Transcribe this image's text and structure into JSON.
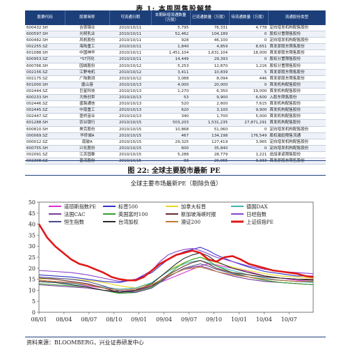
{
  "table_title": "表 1: 本周限售股解禁",
  "table": {
    "headers": [
      "股票代码",
      "股票简称",
      "可流通日期",
      "本期新增流通数量（万股）",
      "已流通数量（万股）",
      "待流通数量（万股）",
      "流通股份类型"
    ],
    "rows": [
      [
        "600432.SH",
        "吉恩镍业",
        "2010/10/11",
        "5,795",
        "76,331",
        "4,778",
        "定向增发机构配售股份"
      ],
      [
        "600597.SH",
        "光明乳业",
        "2010/10/11",
        "52,462",
        "104,189",
        "0",
        "股权分置限售股份"
      ],
      [
        "600482.SH",
        "风帆股份",
        "2010/10/11",
        "928",
        "46,100",
        "0",
        "定向增发机构配售股份"
      ],
      [
        "002255.SZ",
        "海陆重工",
        "2010/10/11",
        "1,840",
        "4,859",
        "8,651",
        "首发原股东限售股份"
      ],
      [
        "601088.SH",
        "中国神华",
        "2010/10/11",
        "1,451,104",
        "1,631,104",
        "18,000",
        "首发原股东限售股份"
      ],
      [
        "600953.SZ",
        "*ST河化",
        "2010/10/11",
        "14,449",
        "29,393",
        "0",
        "股权分置限售股份"
      ],
      [
        "600766.SH",
        "园城股份",
        "2010/10/12",
        "5,253",
        "12,870",
        "1,216",
        "股权分置限售股份"
      ],
      [
        "002156.SZ",
        "江野电机",
        "2010/10/12",
        "3,411",
        "10,839",
        "5",
        "首发原股东限售股份"
      ],
      [
        "002175.SZ",
        "广陆数测",
        "2010/10/12",
        "3,088",
        "8,094",
        "446",
        "首发原股东限售股份"
      ],
      [
        "601000.SH",
        "唐山港",
        "2010/10/13",
        "4,000",
        "20,000",
        "0",
        "首发机构配售股份"
      ],
      [
        "002444.SZ",
        "巨星科技",
        "2010/10/13",
        "1,270",
        "6,350",
        "19,000",
        "首发机构配售股份"
      ],
      [
        "600233.SH",
        "大杨创世",
        "2010/10/13",
        "53",
        "9,900",
        "6,600",
        "入股东限售股份"
      ],
      [
        "002446.SZ",
        "盛路通信",
        "2010/10/13",
        "520",
        "2,600",
        "7,615",
        "首发机构配售股份"
      ],
      [
        "002445.SZ",
        "中南重工",
        "2010/10/13",
        "620",
        "3,100",
        "9,900",
        "首发机构配售股份"
      ],
      [
        "002447.SZ",
        "壹桥苗业",
        "2010/10/13",
        "340",
        "1,700",
        "5,000",
        "首发机构配售股份"
      ],
      [
        "601288.SH",
        "农业银行",
        "2010/10/15",
        "503,203",
        "1,531,235",
        "27,871,291",
        "首发机构配售股份"
      ],
      [
        "600810.SH",
        "美克股份",
        "2010/10/15",
        "10,868",
        "51,060",
        "0",
        "定向增发机构配售股份"
      ],
      [
        "000069.SZ",
        "华侨城A",
        "2010/10/15",
        "467",
        "134,198",
        "176,549",
        "股权激励限售流通"
      ],
      [
        "000012.SZ",
        "南玻A",
        "2010/10/15",
        "29,325",
        "127,419",
        "3,965",
        "定向增发机构配售股份"
      ],
      [
        "600755.SH",
        "兴化股份",
        "2010/10/15",
        "600",
        "35,840",
        "0",
        "定向增发机构配售股份"
      ],
      [
        "002091.SZ",
        "江苏国泰",
        "2010/10/15",
        "5,288",
        "28,779",
        "1,221",
        "追加承诺限售股份"
      ],
      [
        "002308.SZ",
        "普洱股份",
        "2010/10/15",
        "93",
        "20,065",
        "3,333",
        "首发原股东限售股份"
      ]
    ]
  },
  "figure_title": "图 22: 全球主要股市最新 PE",
  "chart_data": {
    "type": "line",
    "title": "全球主要市场最新PE（剔除负值）",
    "x_ticks": [
      "08/01",
      "08/04",
      "08/07",
      "08/10",
      "09/01",
      "09/04",
      "09/07",
      "09/10",
      "10/01",
      "10/04",
      "10/07"
    ],
    "x_range": [
      0,
      34
    ],
    "ylim": [
      0,
      50
    ],
    "y_ticks": [
      0,
      5,
      10,
      15,
      20,
      25,
      30,
      35,
      40,
      45,
      50
    ],
    "legend_rows": [
      [
        "道琼斯指数PE",
        "标普500",
        "加拿大标普",
        "德国DAX"
      ],
      [
        "法国CAC",
        "英国富时100",
        "新加坡海峡时报",
        "日经指数"
      ],
      [
        "恒生指数",
        "台湾加权",
        "澳证200",
        "上证综指PE"
      ]
    ],
    "series": [
      {
        "name": "道琼斯指数PE",
        "color": "#d82fd6",
        "width": 1.1,
        "x": [
          0,
          2,
          4,
          6,
          8,
          10,
          12,
          14,
          15,
          16,
          17,
          18,
          19,
          20,
          21,
          22,
          24,
          26,
          28,
          30,
          32,
          34
        ],
        "values": [
          14.5,
          14,
          13.2,
          12,
          11,
          10,
          10.5,
          12,
          13.5,
          15,
          16.5,
          18,
          19.5,
          21,
          22,
          21.5,
          20,
          18.5,
          16.5,
          15.5,
          14.5,
          14
        ]
      },
      {
        "name": "标普500",
        "color": "#3030c8",
        "width": 1.1,
        "x": [
          0,
          2,
          4,
          6,
          8,
          10,
          12,
          14,
          15,
          16,
          17,
          18,
          19,
          20,
          21,
          22,
          24,
          26,
          28,
          30,
          32,
          34
        ],
        "values": [
          17,
          16.5,
          16,
          15,
          14,
          13.5,
          15,
          18,
          21,
          24,
          26,
          27.5,
          28.5,
          29.5,
          28,
          26,
          23,
          20.5,
          18.5,
          17.5,
          16.5,
          16.5
        ]
      },
      {
        "name": "加拿大标普",
        "color": "#e8d820",
        "width": 1.1,
        "x": [
          0,
          2,
          4,
          6,
          8,
          10,
          12,
          14,
          15,
          16,
          17,
          18,
          19,
          20,
          21,
          22,
          24,
          26,
          28,
          30,
          32,
          34
        ],
        "values": [
          15,
          15.5,
          15,
          14.5,
          13.5,
          12,
          11,
          13,
          16,
          19,
          21,
          22.5,
          24,
          25,
          24,
          22.5,
          20.5,
          19,
          17.5,
          16.5,
          16,
          15.5
        ]
      },
      {
        "name": "德国DAX",
        "color": "#40b0b0",
        "width": 1.1,
        "x": [
          0,
          2,
          4,
          6,
          8,
          10,
          12,
          14,
          15,
          16,
          17,
          18,
          19,
          20,
          21,
          22,
          24,
          26,
          28,
          30,
          32,
          34
        ],
        "values": [
          14,
          13.5,
          13,
          12.5,
          11.5,
          10.5,
          11,
          13.5,
          16,
          18.5,
          20.5,
          22,
          23,
          23.5,
          22.5,
          21,
          19,
          17,
          15.5,
          14.5,
          14,
          13.5
        ]
      },
      {
        "name": "法国CAC",
        "color": "#7a3a9a",
        "width": 1.1,
        "x": [
          0,
          2,
          4,
          6,
          8,
          10,
          12,
          14,
          15,
          16,
          17,
          18,
          19,
          20,
          21,
          22,
          24,
          26,
          28,
          30,
          32,
          34
        ],
        "values": [
          12.5,
          12,
          11.5,
          11,
          10,
          9.5,
          10,
          12,
          14,
          16,
          18,
          19.5,
          20.5,
          21,
          20,
          18.5,
          16.5,
          15,
          14,
          13.5,
          13,
          12.5
        ]
      },
      {
        "name": "英国富时100",
        "color": "#30a030",
        "width": 1.1,
        "x": [
          0,
          2,
          4,
          6,
          8,
          10,
          12,
          14,
          15,
          16,
          17,
          18,
          19,
          20,
          21,
          22,
          24,
          26,
          28,
          30,
          32,
          34
        ],
        "values": [
          13,
          12.5,
          12,
          11.5,
          10,
          8.5,
          9,
          11.5,
          14,
          17,
          20,
          22.5,
          24,
          25,
          23.5,
          21,
          18,
          16,
          14.5,
          13.5,
          13,
          12.5
        ]
      },
      {
        "name": "新加坡海峡时报",
        "color": "#6a2a2a",
        "width": 1.1,
        "x": [
          0,
          2,
          4,
          6,
          8,
          10,
          12,
          14,
          15,
          16,
          17,
          18,
          19,
          20,
          21,
          22,
          24,
          26,
          28,
          30,
          32,
          34
        ],
        "values": [
          15.5,
          15,
          14,
          13,
          11,
          9,
          9.5,
          12,
          14.5,
          17,
          19,
          21,
          22.5,
          23.5,
          22,
          20,
          18,
          17,
          16,
          15.5,
          15,
          15
        ]
      },
      {
        "name": "日经指数",
        "color": "#8a40d0",
        "width": 1.1,
        "x": [
          0,
          2,
          4,
          6,
          8,
          10,
          12,
          14,
          15,
          16,
          17,
          18,
          19,
          20,
          21,
          22,
          24,
          26,
          28,
          30,
          32,
          34
        ],
        "values": [
          19,
          18.5,
          18,
          17,
          15.5,
          14,
          15,
          19,
          23,
          26,
          27.5,
          28.5,
          29,
          28,
          26.5,
          25,
          23,
          21,
          19.5,
          18.5,
          18,
          17.5
        ]
      },
      {
        "name": "恒生指数",
        "color": "#4a4a8a",
        "width": 1.1,
        "x": [
          0,
          2,
          4,
          6,
          8,
          10,
          12,
          14,
          15,
          16,
          17,
          18,
          19,
          20,
          21,
          22,
          24,
          26,
          28,
          30,
          32,
          34
        ],
        "values": [
          16,
          15.5,
          15,
          14,
          12,
          9.5,
          9,
          11,
          13.5,
          16,
          18,
          20,
          21,
          22,
          21,
          19.5,
          17.5,
          16,
          15,
          14.5,
          14,
          14
        ]
      },
      {
        "name": "台湾加权",
        "color": "#2a2a2a",
        "width": 1.1,
        "x": [
          0,
          2,
          4,
          6,
          8,
          10,
          12,
          14,
          15,
          16,
          17,
          18,
          19,
          20,
          21,
          22,
          24,
          26,
          28,
          30,
          32,
          34
        ],
        "values": [
          14,
          13.5,
          12.5,
          11.5,
          10,
          9,
          10,
          13,
          16,
          19,
          22,
          24.5,
          26,
          27,
          25.5,
          23,
          20,
          18,
          16.5,
          15.5,
          15,
          14.5
        ]
      },
      {
        "name": "澳证200",
        "color": "#c07a30",
        "width": 1.1,
        "x": [
          0,
          2,
          4,
          6,
          8,
          10,
          12,
          14,
          15,
          16,
          17,
          18,
          19,
          20,
          21,
          22,
          24,
          26,
          28,
          30,
          32,
          34
        ],
        "values": [
          14.5,
          14,
          13.5,
          12.5,
          11,
          10,
          10.5,
          12.5,
          14.5,
          16.5,
          18,
          19.5,
          20,
          20.5,
          19.5,
          18.5,
          17,
          16,
          15,
          14.5,
          14,
          14
        ]
      },
      {
        "name": "上证综指PE",
        "color": "#e01818",
        "width": 2.6,
        "x": [
          0,
          1,
          2,
          3,
          4,
          5,
          6,
          7,
          8,
          9,
          10,
          11,
          12,
          13,
          14,
          15,
          16,
          17,
          18,
          19,
          20,
          21,
          22,
          23,
          24,
          25,
          26,
          27,
          28,
          29,
          30,
          31,
          32,
          33,
          34
        ],
        "values": [
          40,
          34,
          30,
          27,
          24,
          22,
          21,
          19.5,
          18,
          16,
          15,
          14.5,
          14.5,
          16,
          19,
          22,
          24,
          26,
          27,
          28,
          27,
          24,
          23,
          25,
          25.5,
          24,
          22,
          21,
          20,
          19,
          18.5,
          18,
          17.5,
          16.5,
          16
        ]
      }
    ]
  },
  "source": "资料来源：BLOOMBERG，兴业证券研发中心"
}
